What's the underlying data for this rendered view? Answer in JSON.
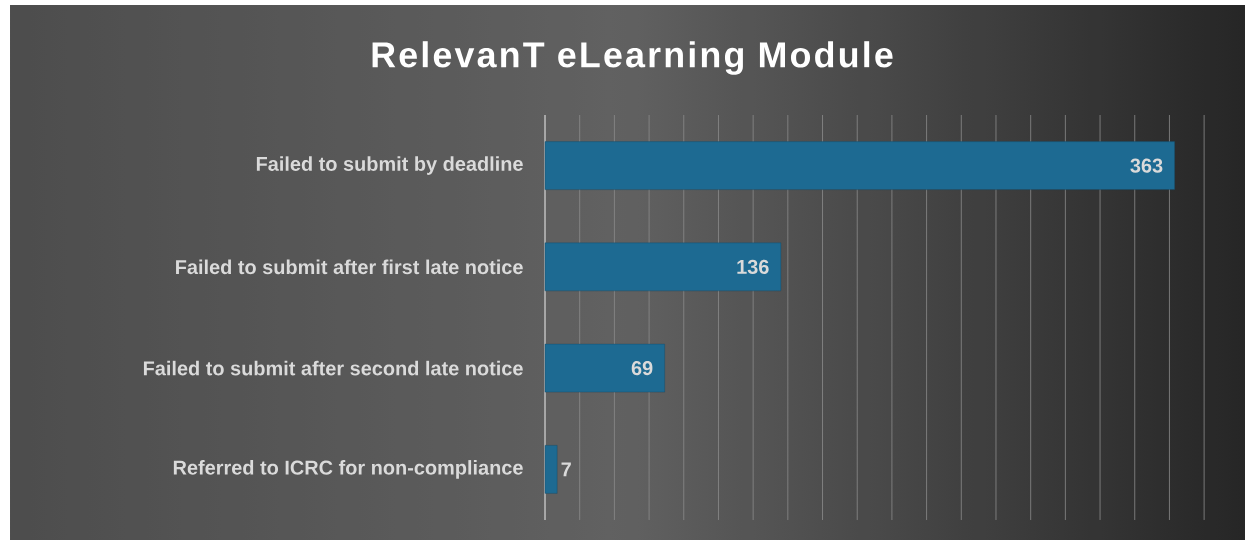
{
  "chart_data": {
    "type": "bar",
    "orientation": "horizontal",
    "title": "RelevanT eLearning Module",
    "categories": [
      "Failed to submit by deadline",
      "Failed to submit after first late notice",
      "Failed to submit after second late notice",
      "Referred to ICRC for non-compliance"
    ],
    "values": [
      363,
      136,
      69,
      7
    ],
    "color": "#1d6a92",
    "data_labels": true,
    "grid": "x"
  }
}
